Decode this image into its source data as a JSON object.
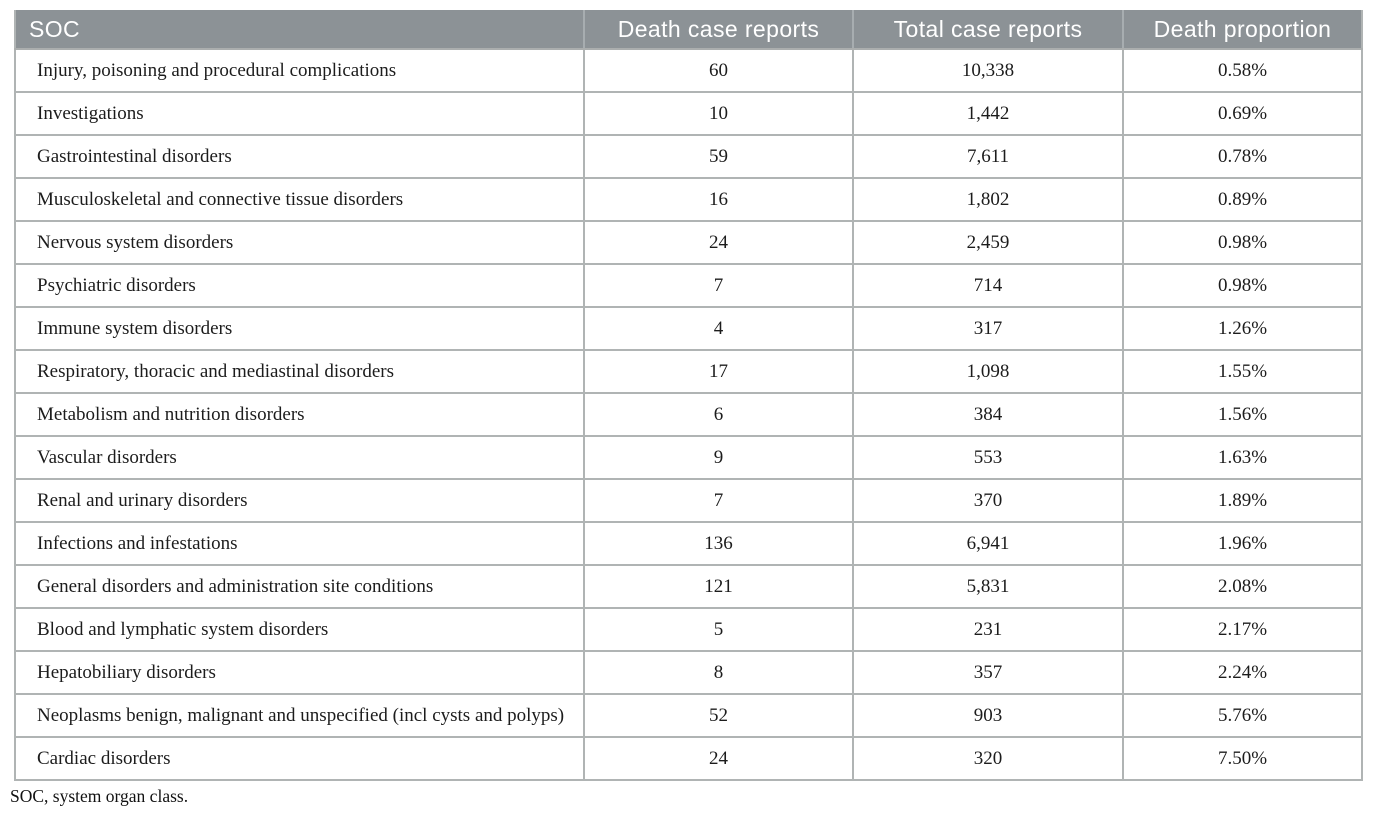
{
  "table": {
    "columns": [
      {
        "key": "soc",
        "label": "SOC"
      },
      {
        "key": "deaths",
        "label": "Death case reports"
      },
      {
        "key": "total",
        "label": "Total case reports"
      },
      {
        "key": "proportion",
        "label": "Death proportion"
      }
    ],
    "rows": [
      {
        "soc": "Injury, poisoning and procedural complications",
        "deaths": "60",
        "total": "10,338",
        "proportion": "0.58%"
      },
      {
        "soc": "Investigations",
        "deaths": "10",
        "total": "1,442",
        "proportion": "0.69%"
      },
      {
        "soc": "Gastrointestinal disorders",
        "deaths": "59",
        "total": "7,611",
        "proportion": "0.78%"
      },
      {
        "soc": "Musculoskeletal and connective tissue disorders",
        "deaths": "16",
        "total": "1,802",
        "proportion": "0.89%"
      },
      {
        "soc": "Nervous system disorders",
        "deaths": "24",
        "total": "2,459",
        "proportion": "0.98%"
      },
      {
        "soc": "Psychiatric disorders",
        "deaths": "7",
        "total": "714",
        "proportion": "0.98%"
      },
      {
        "soc": "Immune system disorders",
        "deaths": "4",
        "total": "317",
        "proportion": "1.26%"
      },
      {
        "soc": "Respiratory, thoracic and mediastinal disorders",
        "deaths": "17",
        "total": "1,098",
        "proportion": "1.55%"
      },
      {
        "soc": "Metabolism and nutrition disorders",
        "deaths": "6",
        "total": "384",
        "proportion": "1.56%"
      },
      {
        "soc": "Vascular disorders",
        "deaths": "9",
        "total": "553",
        "proportion": "1.63%"
      },
      {
        "soc": "Renal and urinary disorders",
        "deaths": "7",
        "total": "370",
        "proportion": "1.89%"
      },
      {
        "soc": "Infections and infestations",
        "deaths": "136",
        "total": "6,941",
        "proportion": "1.96%"
      },
      {
        "soc": "General disorders and administration site conditions",
        "deaths": "121",
        "total": "5,831",
        "proportion": "2.08%"
      },
      {
        "soc": "Blood and lymphatic system disorders",
        "deaths": "5",
        "total": "231",
        "proportion": "2.17%"
      },
      {
        "soc": "Hepatobiliary disorders",
        "deaths": "8",
        "total": "357",
        "proportion": "2.24%"
      },
      {
        "soc": "Neoplasms benign, malignant and unspecified (incl cysts and polyps)",
        "deaths": "52",
        "total": "903",
        "proportion": "5.76%"
      },
      {
        "soc": "Cardiac disorders",
        "deaths": "24",
        "total": "320",
        "proportion": "7.50%"
      }
    ],
    "footnote": "SOC, system organ class."
  },
  "colors": {
    "header_bg": "#8c9296",
    "header_text": "#ffffff",
    "border": "#b0b4b4",
    "body_text": "#1c1c1c"
  }
}
